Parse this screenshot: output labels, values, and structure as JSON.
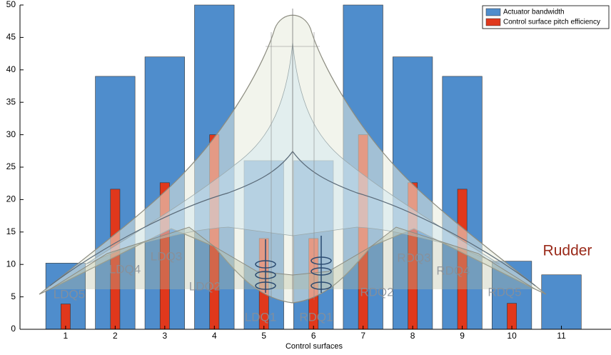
{
  "chart_data": {
    "type": "bar",
    "xlabel": "Control surfaces",
    "x": [
      1,
      2,
      3,
      4,
      5,
      6,
      7,
      8,
      9,
      10,
      11
    ],
    "xlim": [
      0.08,
      12
    ],
    "xticks": [
      1,
      2,
      3,
      4,
      5,
      6,
      7,
      8,
      9,
      10,
      11
    ],
    "ylim": [
      0,
      50
    ],
    "yticks": [
      0,
      5,
      10,
      15,
      20,
      25,
      30,
      35,
      40,
      45,
      50
    ],
    "legend": "upper right",
    "series": [
      {
        "name": "Actuator bandwidth",
        "color": "#4f8dcc",
        "values": [
          10.2,
          39,
          42,
          50,
          26,
          26,
          50,
          42,
          39,
          10.5,
          8.4
        ]
      },
      {
        "name": "Control surface pitch efficiency",
        "color": "#e0381c",
        "values": [
          3.9,
          21.6,
          22.6,
          30,
          14,
          14,
          30,
          22.6,
          21.6,
          4,
          0
        ]
      }
    ],
    "annotations": [
      "LDQ5",
      "LDQ4",
      "LDQ3",
      "LDQ2",
      "LDQ1",
      "RDQ1",
      "RDQ2",
      "RDQ3",
      "RDQ4",
      "RDQ5",
      "Rudder"
    ]
  }
}
